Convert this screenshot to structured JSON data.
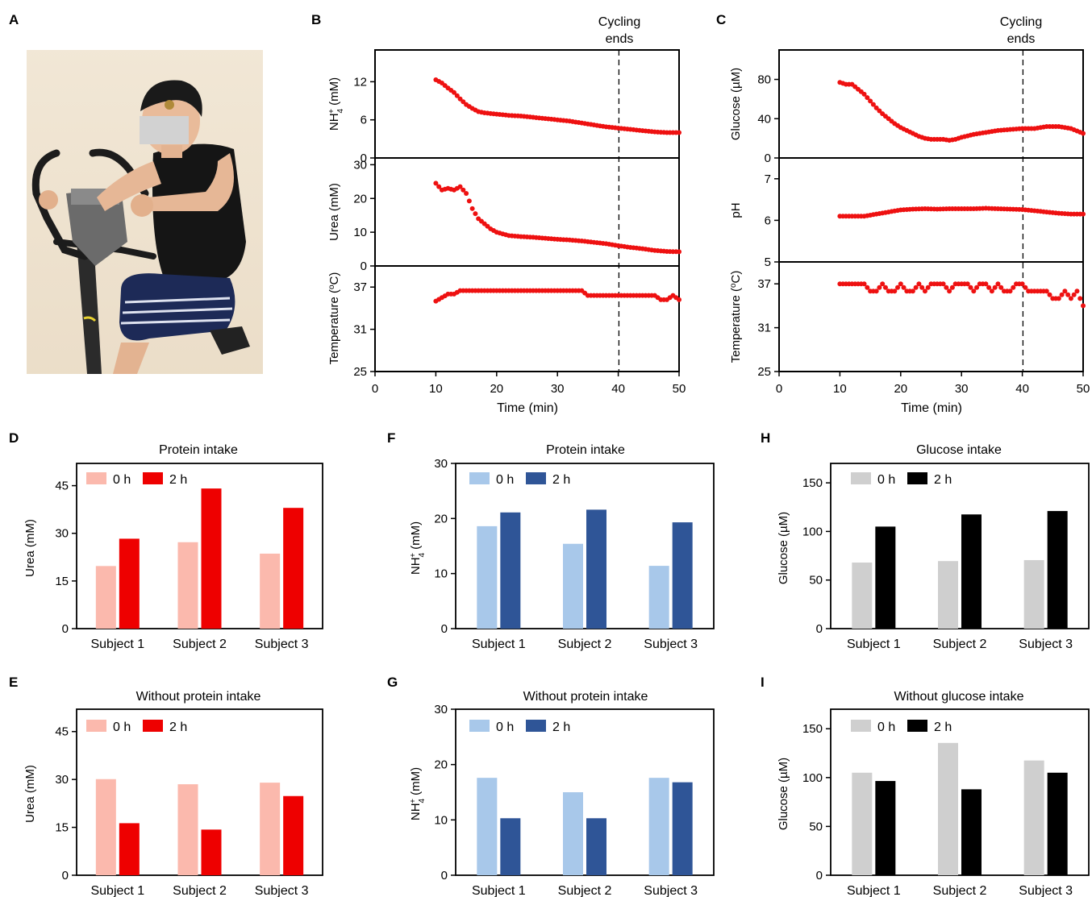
{
  "panel_letters": [
    "A",
    "B",
    "C",
    "D",
    "E",
    "F",
    "G",
    "H",
    "I"
  ],
  "photo": {
    "subject": "person-on-exercise-bike",
    "face": "obscured-by-gray-rectangle"
  },
  "colors": {
    "scatter": "#ee1111",
    "urea_0h": "#fbb9ad",
    "urea_2h": "#ee0000",
    "nh4_0h": "#a8c8ea",
    "nh4_2h": "#2f5597",
    "glu_0h": "#cfcfcf",
    "glu_2h": "#000000"
  },
  "chart_data": [
    {
      "id": "B",
      "type": "scatter",
      "annotation": {
        "x": 40,
        "line1": "Cycling",
        "line2": "ends",
        "style": "dashed-vertical"
      },
      "xlabel": "Time (min)",
      "xlim": [
        0,
        50
      ],
      "xticks": [
        "0",
        "10",
        "20",
        "30",
        "40",
        "50"
      ],
      "subplots": [
        {
          "ylabel": "NH4+ (mM)",
          "ylabel_main": "NH",
          "ylabel_sub": "4",
          "ylabel_sup": "+",
          "ylabel_rest": " (mM)",
          "ylim": [
            0,
            17
          ],
          "yticks": [
            0,
            6,
            12
          ],
          "points": [
            [
              10,
              12.3
            ],
            [
              11,
              11.8
            ],
            [
              12,
              11
            ],
            [
              13,
              10.3
            ],
            [
              14,
              9.3
            ],
            [
              15,
              8.4
            ],
            [
              16,
              7.8
            ],
            [
              17,
              7.3
            ],
            [
              18,
              7.1
            ],
            [
              19,
              7
            ],
            [
              20,
              6.9
            ],
            [
              21,
              6.8
            ],
            [
              22,
              6.7
            ],
            [
              24,
              6.6
            ],
            [
              26,
              6.4
            ],
            [
              28,
              6.2
            ],
            [
              30,
              6
            ],
            [
              32,
              5.8
            ],
            [
              34,
              5.5
            ],
            [
              36,
              5.2
            ],
            [
              38,
              4.9
            ],
            [
              40,
              4.7
            ],
            [
              42,
              4.5
            ],
            [
              44,
              4.3
            ],
            [
              46,
              4.1
            ],
            [
              48,
              4
            ],
            [
              50,
              4
            ]
          ]
        },
        {
          "ylabel": "Urea (mM)",
          "ylim": [
            0,
            32
          ],
          "yticks": [
            0,
            10,
            20,
            30
          ],
          "points": [
            [
              10,
              24.5
            ],
            [
              11,
              22.5
            ],
            [
              12,
              23
            ],
            [
              13,
              22.5
            ],
            [
              14,
              23.5
            ],
            [
              15,
              21.5
            ],
            [
              16,
              17
            ],
            [
              17,
              14
            ],
            [
              18,
              12.5
            ],
            [
              19,
              11
            ],
            [
              20,
              10
            ],
            [
              22,
              9
            ],
            [
              24,
              8.7
            ],
            [
              26,
              8.5
            ],
            [
              28,
              8.2
            ],
            [
              30,
              7.9
            ],
            [
              32,
              7.7
            ],
            [
              34,
              7.4
            ],
            [
              36,
              7
            ],
            [
              38,
              6.6
            ],
            [
              40,
              6
            ],
            [
              42,
              5.5
            ],
            [
              44,
              5.1
            ],
            [
              46,
              4.6
            ],
            [
              48,
              4.3
            ],
            [
              50,
              4.2
            ]
          ]
        },
        {
          "ylabel": "Temperature (oC)",
          "ylabel_main": "Temperature (",
          "ylabel_sup": "o",
          "ylabel_rest": "C)",
          "ylim": [
            25,
            40
          ],
          "yticks": [
            25,
            31,
            37
          ],
          "points": [
            [
              10,
              35
            ],
            [
              11,
              35.5
            ],
            [
              12,
              36
            ],
            [
              13,
              36
            ],
            [
              14,
              36.5
            ],
            [
              15,
              36.5
            ],
            [
              18,
              36.5
            ],
            [
              21,
              36.5
            ],
            [
              24,
              36.5
            ],
            [
              27,
              36.5
            ],
            [
              30,
              36.5
            ],
            [
              33,
              36.5
            ],
            [
              34,
              36.5
            ],
            [
              35,
              35.8
            ],
            [
              38,
              35.8
            ],
            [
              41,
              35.8
            ],
            [
              44,
              35.8
            ],
            [
              46,
              35.8
            ],
            [
              47,
              35.2
            ],
            [
              48,
              35.2
            ],
            [
              49,
              35.8
            ],
            [
              50,
              35.2
            ]
          ]
        }
      ]
    },
    {
      "id": "C",
      "type": "scatter",
      "annotation": {
        "x": 40,
        "line1": "Cycling",
        "line2": "ends",
        "style": "dashed-vertical"
      },
      "xlabel": "Time (min)",
      "xlim": [
        0,
        50
      ],
      "xticks": [
        "0",
        "10",
        "20",
        "30",
        "40",
        "50"
      ],
      "subplots": [
        {
          "ylabel": "Glucose (µM)",
          "ylim": [
            0,
            110
          ],
          "yticks": [
            0,
            40,
            80
          ],
          "points": [
            [
              10,
              77
            ],
            [
              11,
              75
            ],
            [
              12,
              75
            ],
            [
              13,
              70
            ],
            [
              14,
              65
            ],
            [
              15,
              58
            ],
            [
              16,
              51
            ],
            [
              17,
              45
            ],
            [
              18,
              40
            ],
            [
              19,
              35
            ],
            [
              20,
              31
            ],
            [
              21,
              28
            ],
            [
              22,
              25
            ],
            [
              23,
              22
            ],
            [
              24,
              20
            ],
            [
              25,
              19
            ],
            [
              26,
              19
            ],
            [
              27,
              19
            ],
            [
              28,
              18
            ],
            [
              29,
              19
            ],
            [
              30,
              21
            ],
            [
              32,
              24
            ],
            [
              34,
              26
            ],
            [
              36,
              28
            ],
            [
              38,
              29
            ],
            [
              40,
              30
            ],
            [
              42,
              30
            ],
            [
              44,
              32
            ],
            [
              46,
              32
            ],
            [
              48,
              30
            ],
            [
              50,
              25
            ]
          ]
        },
        {
          "ylabel": "pH",
          "ylim": [
            5,
            7.5
          ],
          "yticks": [
            5,
            6,
            7
          ],
          "points": [
            [
              10,
              6.1
            ],
            [
              12,
              6.1
            ],
            [
              14,
              6.1
            ],
            [
              16,
              6.15
            ],
            [
              18,
              6.2
            ],
            [
              20,
              6.25
            ],
            [
              22,
              6.27
            ],
            [
              24,
              6.28
            ],
            [
              26,
              6.27
            ],
            [
              28,
              6.28
            ],
            [
              30,
              6.28
            ],
            [
              32,
              6.28
            ],
            [
              34,
              6.29
            ],
            [
              36,
              6.28
            ],
            [
              38,
              6.27
            ],
            [
              40,
              6.26
            ],
            [
              42,
              6.23
            ],
            [
              44,
              6.2
            ],
            [
              46,
              6.17
            ],
            [
              48,
              6.15
            ],
            [
              50,
              6.15
            ]
          ]
        },
        {
          "ylabel": "Temperature (oC)",
          "ylabel_main": "Temperature (",
          "ylabel_sup": "o",
          "ylabel_rest": "C)",
          "ylim": [
            25,
            40
          ],
          "yticks": [
            25,
            31,
            37
          ],
          "points": [
            [
              10,
              37
            ],
            [
              11,
              37
            ],
            [
              12,
              37
            ],
            [
              13,
              37
            ],
            [
              14,
              37
            ],
            [
              15,
              36
            ],
            [
              16,
              36
            ],
            [
              17,
              37
            ],
            [
              18,
              36
            ],
            [
              19,
              36
            ],
            [
              20,
              37
            ],
            [
              21,
              36
            ],
            [
              22,
              36
            ],
            [
              23,
              37
            ],
            [
              24,
              36
            ],
            [
              25,
              37
            ],
            [
              26,
              37
            ],
            [
              27,
              37
            ],
            [
              28,
              36
            ],
            [
              29,
              37
            ],
            [
              30,
              37
            ],
            [
              31,
              37
            ],
            [
              32,
              36
            ],
            [
              33,
              37
            ],
            [
              34,
              37
            ],
            [
              35,
              36
            ],
            [
              36,
              37
            ],
            [
              37,
              36
            ],
            [
              38,
              36
            ],
            [
              39,
              37
            ],
            [
              40,
              37
            ],
            [
              41,
              36
            ],
            [
              42,
              36
            ],
            [
              43,
              36
            ],
            [
              44,
              36
            ],
            [
              45,
              35
            ],
            [
              46,
              35
            ],
            [
              47,
              36
            ],
            [
              48,
              35
            ],
            [
              49,
              36
            ],
            [
              50,
              34
            ]
          ]
        }
      ]
    },
    {
      "id": "D",
      "type": "bar",
      "title": "Protein intake",
      "ylabel": "Urea (mM)",
      "categories": [
        "Subject 1",
        "Subject 2",
        "Subject 3"
      ],
      "ylim": [
        0,
        52
      ],
      "yticks": [
        0,
        15,
        30,
        45
      ],
      "series": [
        {
          "name": "0 h",
          "values": [
            19.7,
            27.2,
            23.6
          ]
        },
        {
          "name": "2 h",
          "values": [
            28.3,
            44.1,
            38
          ]
        }
      ]
    },
    {
      "id": "E",
      "type": "bar",
      "title": "Without protein intake",
      "ylabel": "Urea (mM)",
      "categories": [
        "Subject 1",
        "Subject 2",
        "Subject 3"
      ],
      "ylim": [
        0,
        52
      ],
      "yticks": [
        0,
        15,
        30,
        45
      ],
      "series": [
        {
          "name": "0 h",
          "values": [
            30.1,
            28.5,
            29
          ]
        },
        {
          "name": "2 h",
          "values": [
            16.3,
            14.3,
            24.8
          ]
        }
      ]
    },
    {
      "id": "F",
      "type": "bar",
      "title": "Protein intake",
      "ylabel": "NH4+ (mM)",
      "categories": [
        "Subject 1",
        "Subject 2",
        "Subject 3"
      ],
      "ylim": [
        0,
        30
      ],
      "yticks": [
        0,
        10,
        20,
        30
      ],
      "series": [
        {
          "name": "0 h",
          "values": [
            18.6,
            15.4,
            11.4
          ]
        },
        {
          "name": "2 h",
          "values": [
            21.1,
            21.6,
            19.3
          ]
        }
      ]
    },
    {
      "id": "G",
      "type": "bar",
      "title": "Without protein intake",
      "ylabel": "NH4+ (mM)",
      "categories": [
        "Subject 1",
        "Subject 2",
        "Subject 3"
      ],
      "ylim": [
        0,
        30
      ],
      "yticks": [
        0,
        10,
        20,
        30
      ],
      "series": [
        {
          "name": "0 h",
          "values": [
            17.6,
            15,
            17.6
          ]
        },
        {
          "name": "2 h",
          "values": [
            10.3,
            10.3,
            16.8
          ]
        }
      ]
    },
    {
      "id": "H",
      "type": "bar",
      "title": "Glucose intake",
      "ylabel": "Glucose (µM)",
      "categories": [
        "Subject 1",
        "Subject 2",
        "Subject 3"
      ],
      "ylim": [
        0,
        170
      ],
      "yticks": [
        0,
        50,
        100,
        150
      ],
      "series": [
        {
          "name": "0 h",
          "values": [
            68,
            69.5,
            70.5
          ]
        },
        {
          "name": "2 h",
          "values": [
            105,
            117.5,
            121
          ]
        }
      ]
    },
    {
      "id": "I",
      "type": "bar",
      "title": "Without glucose intake",
      "ylabel": "Glucose (µM)",
      "categories": [
        "Subject 1",
        "Subject 2",
        "Subject 3"
      ],
      "ylim": [
        0,
        170
      ],
      "yticks": [
        0,
        50,
        100,
        150
      ],
      "series": [
        {
          "name": "0 h",
          "values": [
            105,
            135.5,
            117.5
          ]
        },
        {
          "name": "2 h",
          "values": [
            96.5,
            88,
            105
          ]
        }
      ]
    }
  ]
}
